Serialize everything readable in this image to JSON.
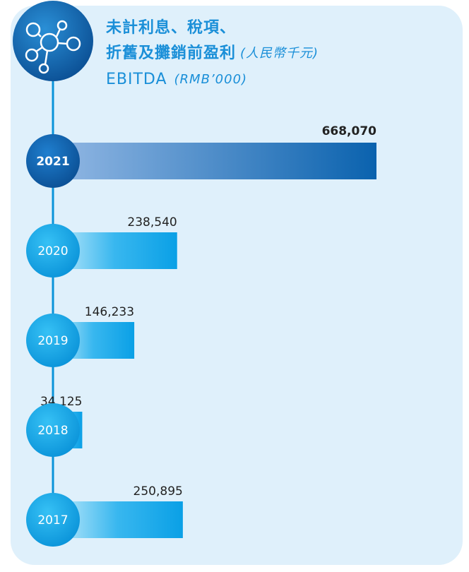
{
  "chart_data": {
    "type": "bar",
    "orientation": "horizontal",
    "title": [
      "未計利息、稅項、",
      "折舊及攤銷前盈利",
      "EBITDA"
    ],
    "title_units": [
      "(人民幣千元)",
      "(RMB’000)"
    ],
    "categories": [
      "2021",
      "2020",
      "2019",
      "2018",
      "2017"
    ],
    "values": [
      668070,
      238540,
      146233,
      34125,
      250895
    ],
    "value_labels": [
      "668,070",
      "238,540",
      "146,233",
      "34,125",
      "250,895"
    ],
    "color": "#0aa0e6",
    "highlight_color": "#0a62ae"
  }
}
